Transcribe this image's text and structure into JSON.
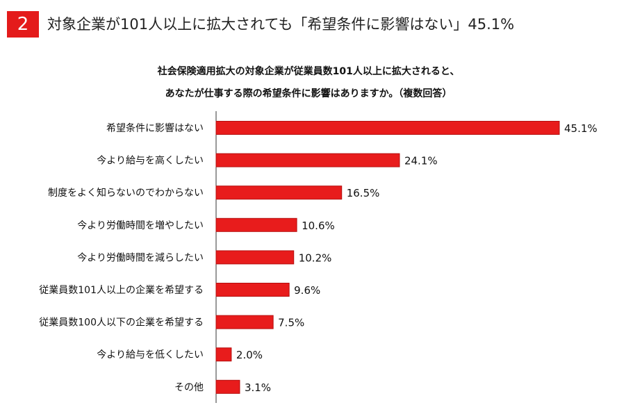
{
  "header": {
    "number": "2",
    "title": "対象企業が101人以上に拡大されても「希望条件に影響はない」45.1%"
  },
  "question": {
    "line1": "社会保険適用拡大の対象企業が従業員数101人以上に拡大されると、",
    "line2": "あなたが仕事する際の希望条件に影響はありますか。（複数回答）"
  },
  "colors": {
    "bar": "#e81c1c",
    "bar_edge": "#b50f0f",
    "accent": "#e41b1b"
  },
  "chart_data": {
    "type": "bar",
    "orientation": "horizontal",
    "categories": [
      "希望条件に影響はない",
      "今より給与を高くしたい",
      "制度をよく知らないのでわからない",
      "今より労働時間を増やしたい",
      "今より労働時間を減らしたい",
      "従業員数101人以上の企業を希望する",
      "従業員数100人以下の企業を希望する",
      "今より給与を低くしたい",
      "その他"
    ],
    "values": [
      45.1,
      24.1,
      16.5,
      10.6,
      10.2,
      9.6,
      7.5,
      2.0,
      3.1
    ],
    "value_labels": [
      "45.1%",
      "24.1%",
      "16.5%",
      "10.6%",
      "10.2%",
      "9.6%",
      "7.5%",
      "2.0%",
      "3.1%"
    ],
    "xlim": [
      0,
      45.1
    ],
    "grid": false
  }
}
